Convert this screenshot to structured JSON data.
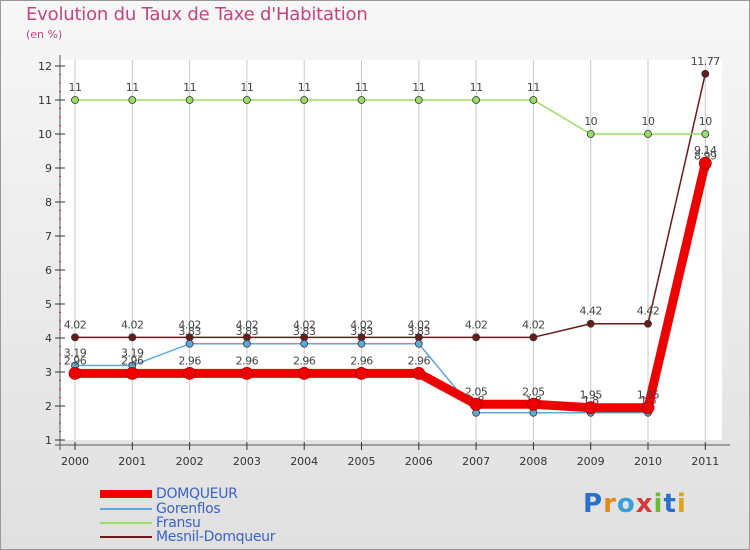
{
  "title": "Evolution du Taux de Taxe d'Habitation",
  "unit": "(en %)",
  "chart_data": {
    "type": "line",
    "title": "Evolution du Taux de Taxe d'Habitation",
    "ylabel": "(en %)",
    "xlabel": "",
    "ylim": [
      1,
      12
    ],
    "y_ticks": [
      "1",
      "2",
      "3",
      "4",
      "5",
      "6",
      "7",
      "8",
      "9",
      "10",
      "11",
      "12"
    ],
    "categories": [
      "2000",
      "2001",
      "2002",
      "2003",
      "2004",
      "2005",
      "2006",
      "2007",
      "2008",
      "2009",
      "2010",
      "2011"
    ],
    "series": [
      {
        "name": "Mesnil-Domqueur",
        "color": "#6b1a1a",
        "values": [
          4.02,
          4.02,
          4.02,
          4.02,
          4.02,
          4.02,
          4.02,
          4.02,
          4.02,
          4.42,
          4.42,
          11.77
        ],
        "labels": [
          "4.02",
          "4.02",
          "4.02",
          "4.02",
          "4.02",
          "4.02",
          "4.02",
          "4.02",
          "4.02",
          "4.42",
          "4.42",
          "11.77"
        ]
      },
      {
        "name": "Fransu",
        "color": "#99dd66",
        "values": [
          11,
          11,
          11,
          11,
          11,
          11,
          11,
          11,
          11,
          10,
          10,
          10
        ],
        "labels": [
          "11",
          "11",
          "11",
          "11",
          "11",
          "11",
          "11",
          "11",
          "11",
          "10",
          "10",
          "10"
        ]
      },
      {
        "name": "Gorenflos",
        "color": "#5fa8d8",
        "values": [
          3.19,
          3.19,
          3.83,
          3.83,
          3.83,
          3.83,
          3.83,
          1.8,
          1.8,
          1.8,
          1.8,
          8.99
        ],
        "labels": [
          "3.19",
          "3.19",
          "3.83",
          "3.83",
          "3.83",
          "3.83",
          "3.83",
          "1.8",
          "1.8",
          "1.8",
          "1.8",
          "8.99"
        ]
      },
      {
        "name": "DOMQUEUR",
        "color": "#ee0000",
        "values": [
          2.96,
          2.96,
          2.96,
          2.96,
          2.96,
          2.96,
          2.96,
          2.05,
          2.05,
          1.95,
          1.95,
          9.14
        ],
        "labels": [
          "2.96",
          "2.96",
          "2.96",
          "2.96",
          "2.96",
          "2.96",
          "2.96",
          "2.05",
          "2.05",
          "1.95",
          "1.95",
          "9.14"
        ]
      }
    ],
    "legend": [
      "DOMQUEUR",
      "Gorenflos",
      "Fransu",
      "Mesnil-Domqueur"
    ],
    "legend_position": "bottom-left"
  },
  "legend": [
    {
      "name": "DOMQUEUR",
      "color": "#ee0000"
    },
    {
      "name": "Gorenflos",
      "color": "#5fa8d8"
    },
    {
      "name": "Fransu",
      "color": "#99dd66"
    },
    {
      "name": "Mesnil-Domqueur",
      "color": "#6b1a1a"
    }
  ],
  "logo": {
    "text": "Proxiti",
    "letters": [
      "P",
      "r",
      "o",
      "x",
      "i",
      "t",
      "i"
    ],
    "colors": [
      "#2a6fc9",
      "#e08a1a",
      "#3aa0d8",
      "#d63a3a",
      "#6fb83a",
      "#2a6fc9",
      "#e0a21a"
    ]
  }
}
